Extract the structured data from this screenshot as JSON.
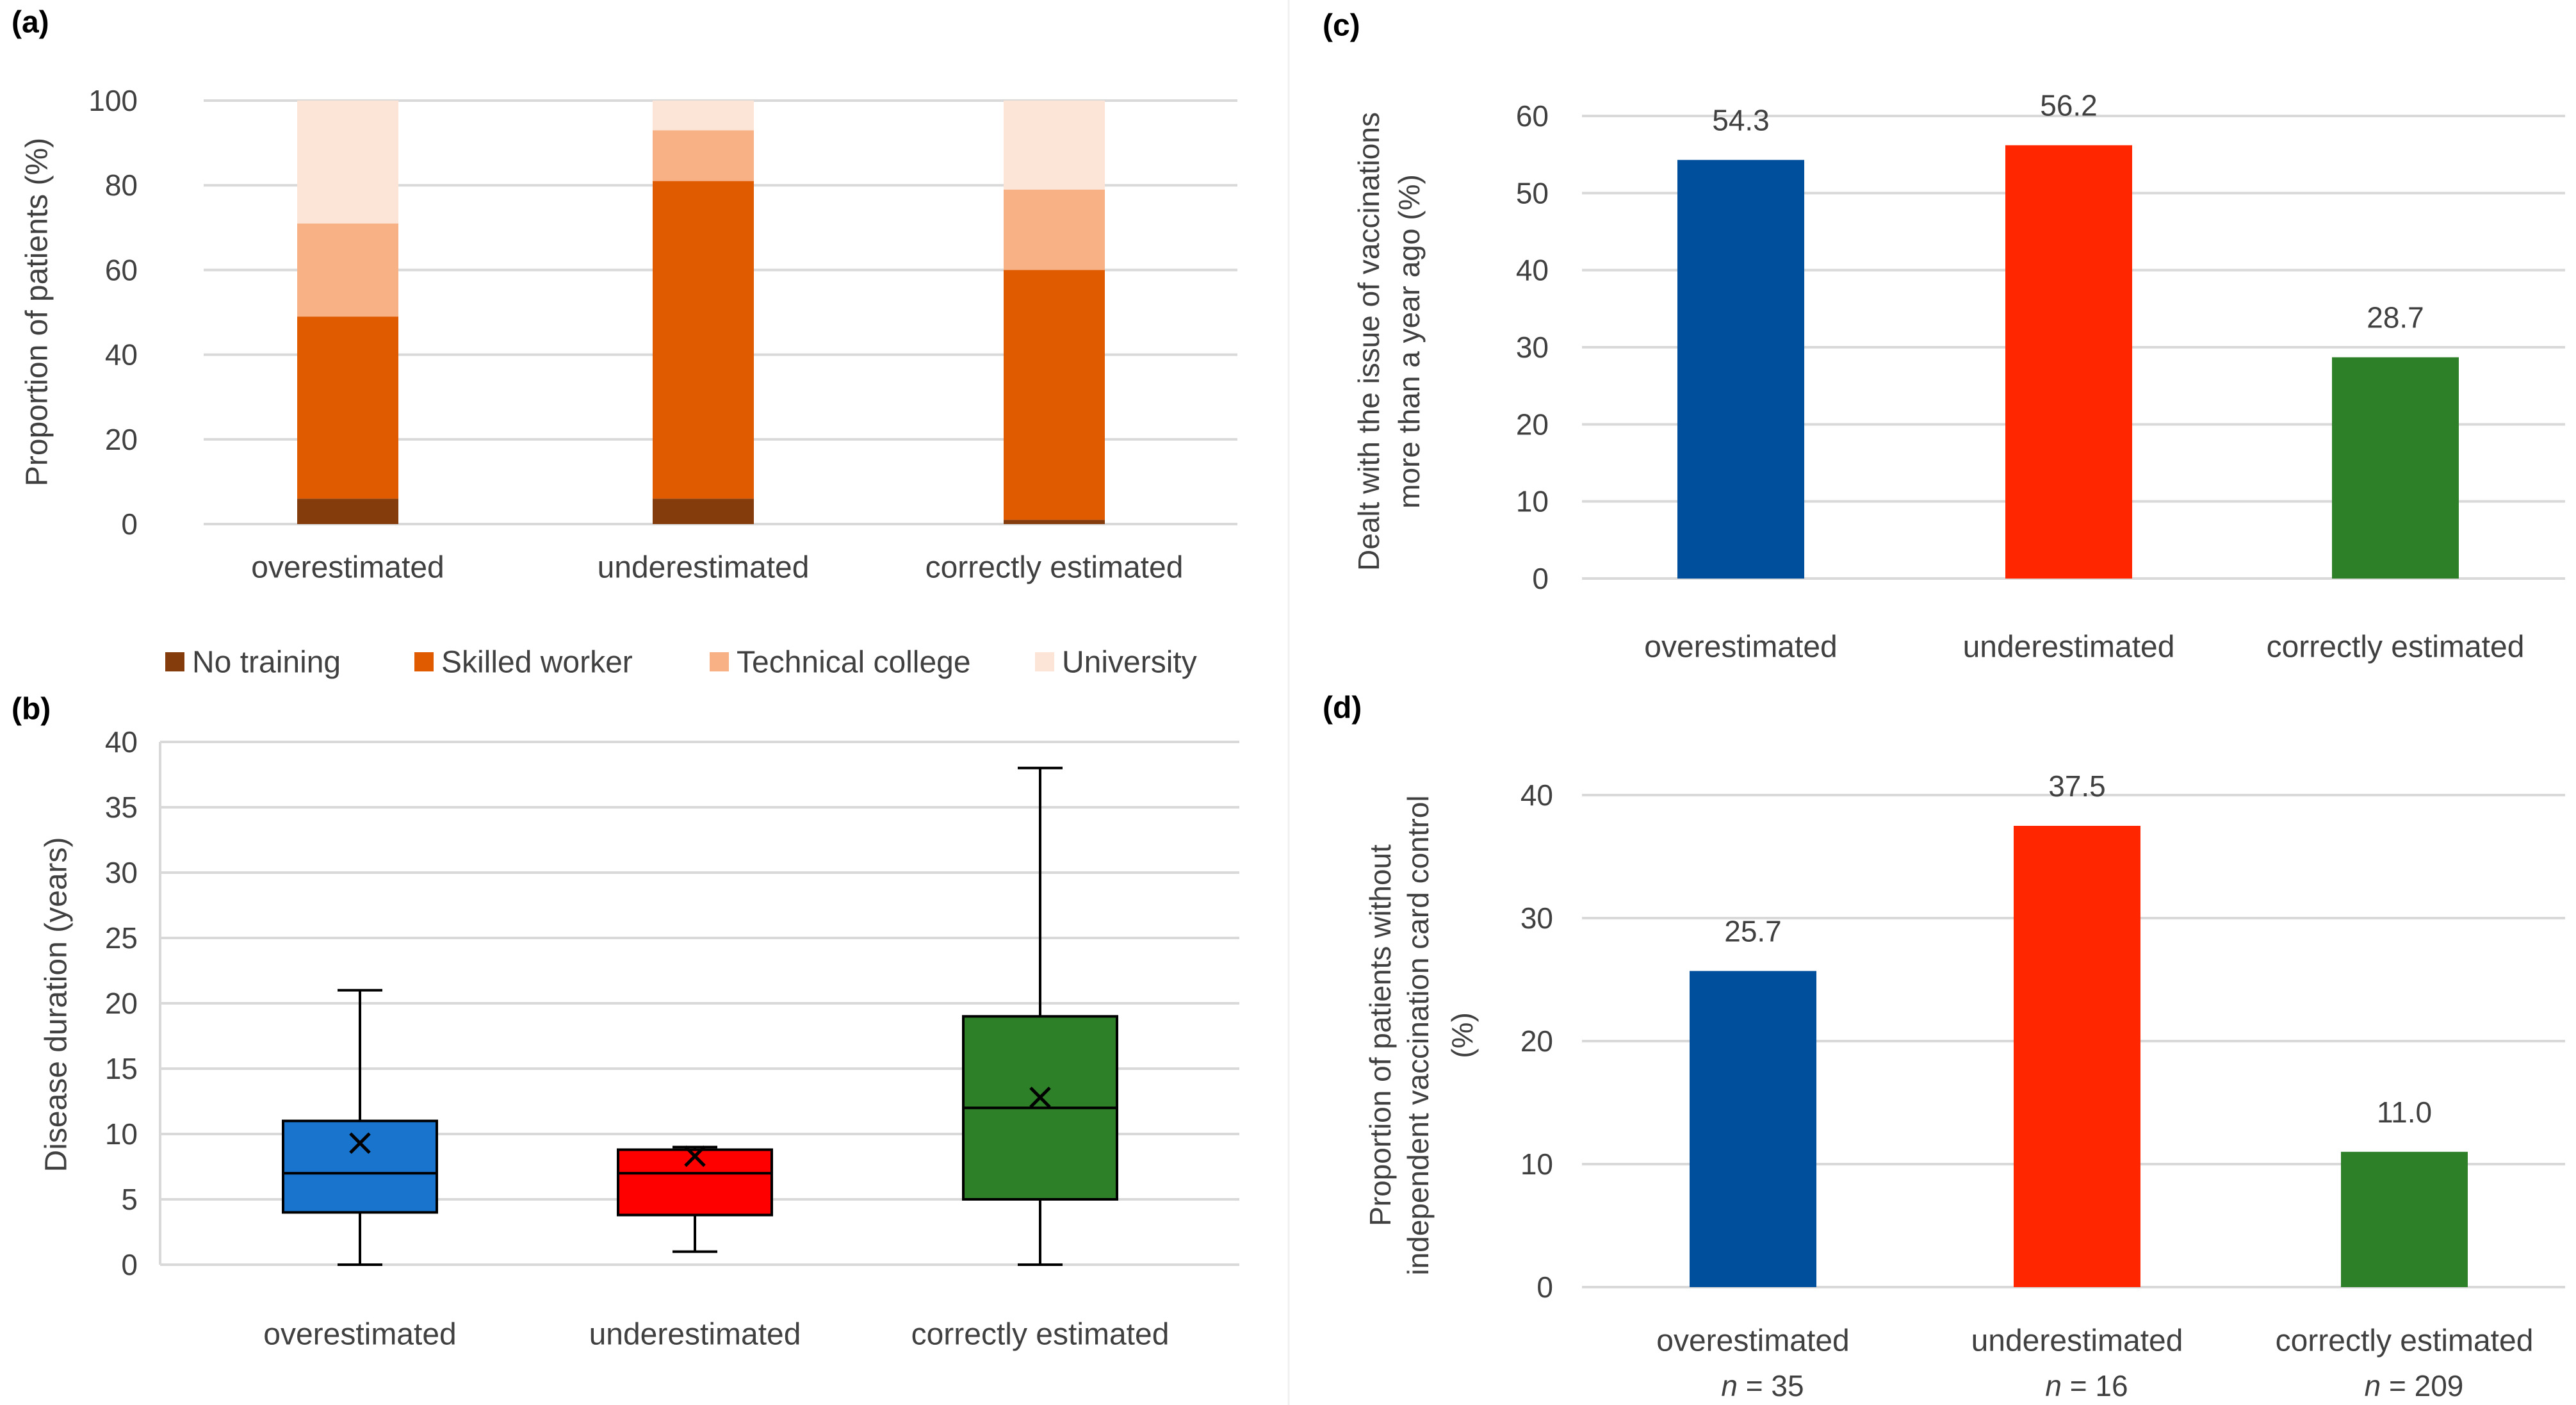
{
  "chart_data": [
    {
      "panel": "(a)",
      "type": "bar",
      "stacked": true,
      "categories": [
        "overestimated",
        "underestimated",
        "correctly estimated"
      ],
      "series": [
        {
          "name": "No training",
          "values": [
            6,
            6,
            1
          ]
        },
        {
          "name": "Skilled worker",
          "values": [
            43,
            75,
            59
          ]
        },
        {
          "name": "Technical college",
          "values": [
            22,
            12,
            19
          ]
        },
        {
          "name": "University",
          "values": [
            29,
            7,
            21
          ]
        }
      ],
      "ylabel": "Proportion of patients (%)",
      "ylim": [
        0,
        100
      ],
      "yticks": [
        "0",
        "20",
        "40",
        "60",
        "80",
        "100"
      ],
      "grid": true,
      "legend": "bottom"
    },
    {
      "panel": "(b)",
      "type": "box",
      "categories": [
        "overestimated",
        "underestimated",
        "correctly estimated"
      ],
      "boxes": [
        {
          "min": 0,
          "q1": 4,
          "median": 7,
          "q3": 11,
          "max": 21,
          "mean": 9.3
        },
        {
          "min": 1,
          "q1": 3.8,
          "median": 7,
          "q3": 8.8,
          "max": 9,
          "mean": 8.3
        },
        {
          "min": 0,
          "q1": 5,
          "median": 12,
          "q3": 19,
          "max": 38,
          "mean": 12.8
        }
      ],
      "ylabel": "Disease duration (years)",
      "ylim": [
        0,
        40
      ],
      "yticks": [
        "0",
        "5",
        "10",
        "15",
        "20",
        "25",
        "30",
        "35",
        "40"
      ],
      "grid": true
    },
    {
      "panel": "(c)",
      "type": "bar",
      "categories": [
        "overestimated",
        "underestimated",
        "correctly estimated"
      ],
      "values": [
        54.3,
        56.2,
        28.7
      ],
      "labels": [
        "54.3",
        "56.2",
        "28.7"
      ],
      "ylabel_lines": [
        "Dealt with the issue of vaccinations",
        "more than a year ago (%)"
      ],
      "ylim": [
        0,
        60
      ],
      "yticks": [
        "0",
        "10",
        "20",
        "30",
        "40",
        "50",
        "60"
      ],
      "grid": true
    },
    {
      "panel": "(d)",
      "type": "bar",
      "categories": [
        "overestimated",
        "underestimated",
        "correctly estimated"
      ],
      "values": [
        25.7,
        37.5,
        11.0
      ],
      "labels": [
        "25.7",
        "37.5",
        "11.0"
      ],
      "n_labels": [
        "35",
        "16",
        "209"
      ],
      "n_prefix": "n",
      "ylabel_lines": [
        "Proportion of patients without",
        "independent vaccination card control",
        "(%)"
      ],
      "ylim": [
        0,
        40
      ],
      "yticks": [
        "0",
        "10",
        "20",
        "30",
        "40"
      ],
      "grid": true
    }
  ],
  "colors": {
    "stack": [
      "#843c0c",
      "#e05a00",
      "#f8b085",
      "#fce4d6"
    ],
    "bars": [
      "#004f9c",
      "#ff2600",
      "#2e8028"
    ],
    "boxes": [
      "#1874cd",
      "#ff0000",
      "#2e8028"
    ],
    "grid": "#d9d9d9",
    "text": "#404040"
  }
}
